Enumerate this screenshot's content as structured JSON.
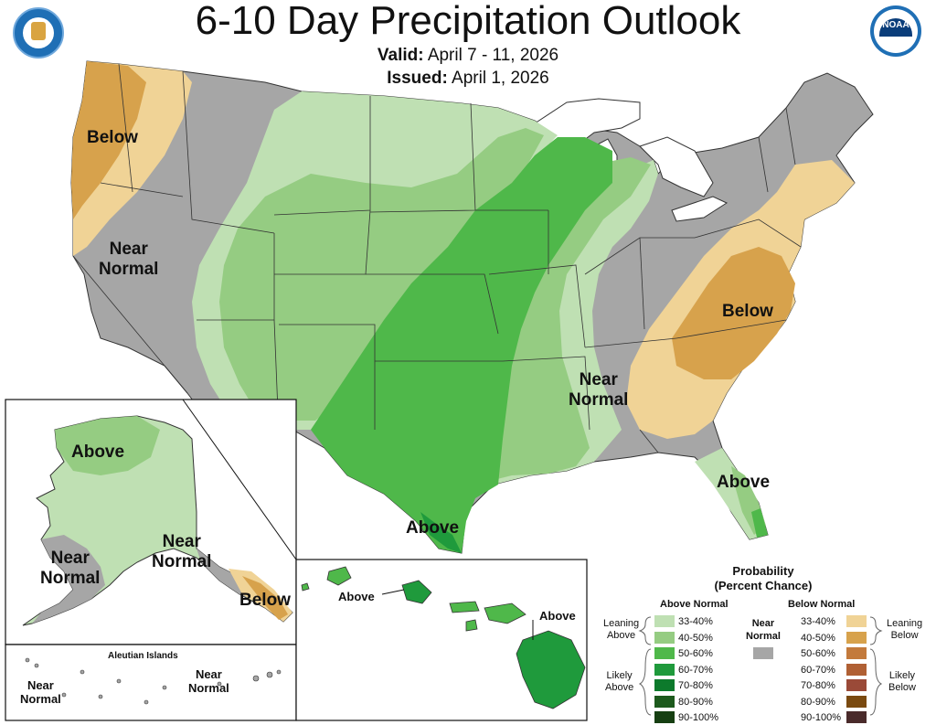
{
  "title": "6-10 Day Precipitation Outlook",
  "valid_label": "Valid:",
  "valid_value": "April 7 - 11, 2026",
  "issued_label": "Issued:",
  "issued_value": "April 1, 2026",
  "logos": {
    "left": "dept-of-commerce-seal",
    "right": "noaa-logo",
    "noaa_text": "NOAA"
  },
  "colors": {
    "land_near_normal": "#a6a6a6",
    "above_33_40": "#bfe0b3",
    "above_40_50": "#95cc82",
    "above_50_60": "#4fb84a",
    "above_60_70": "#1f9a3c",
    "below_33_40": "#f0d396",
    "below_40_50": "#d7a24c",
    "water": "#ffffff"
  },
  "map_labels": {
    "nw_below": "Below",
    "west_near_normal": "Near\nNormal",
    "east_below": "Below",
    "east_near_normal": "Near\nNormal",
    "florida_above": "Above",
    "texas_above": "Above",
    "alaska_above": "Above",
    "alaska_near_normal_w": "Near\nNormal",
    "alaska_near_normal_e": "Near\nNormal",
    "alaska_below": "Below",
    "aleutian_title": "Aleutian Islands",
    "aleutian_near_normal_w": "Near\nNormal",
    "aleutian_near_normal_e": "Near\nNormal",
    "hawaii_above_w": "Above",
    "hawaii_above_e": "Above"
  },
  "legend": {
    "title": "Probability\n(Percent Chance)",
    "above_header": "Above Normal",
    "below_header": "Below Normal",
    "near_header": "Near\nNormal",
    "leaning_above": "Leaning\nAbove",
    "likely_above": "Likely\nAbove",
    "leaning_below": "Leaning\nBelow",
    "likely_below": "Likely\nBelow",
    "above_items": [
      {
        "label": "33-40%",
        "color": "#bfe0b3"
      },
      {
        "label": "40-50%",
        "color": "#95cc82"
      },
      {
        "label": "50-60%",
        "color": "#4fb84a"
      },
      {
        "label": "60-70%",
        "color": "#1f9a3c"
      },
      {
        "label": "70-80%",
        "color": "#0d7a2c"
      },
      {
        "label": "80-90%",
        "color": "#1d5a1d"
      },
      {
        "label": "90-100%",
        "color": "#163f12"
      }
    ],
    "below_items": [
      {
        "label": "33-40%",
        "color": "#f0d396"
      },
      {
        "label": "40-50%",
        "color": "#d7a24c"
      },
      {
        "label": "50-60%",
        "color": "#c37a3c"
      },
      {
        "label": "60-70%",
        "color": "#b06034"
      },
      {
        "label": "70-80%",
        "color": "#9a4a38"
      },
      {
        "label": "80-90%",
        "color": "#7a4a10"
      },
      {
        "label": "90-100%",
        "color": "#4a2b2b"
      }
    ],
    "near_color": "#a6a6a6"
  }
}
